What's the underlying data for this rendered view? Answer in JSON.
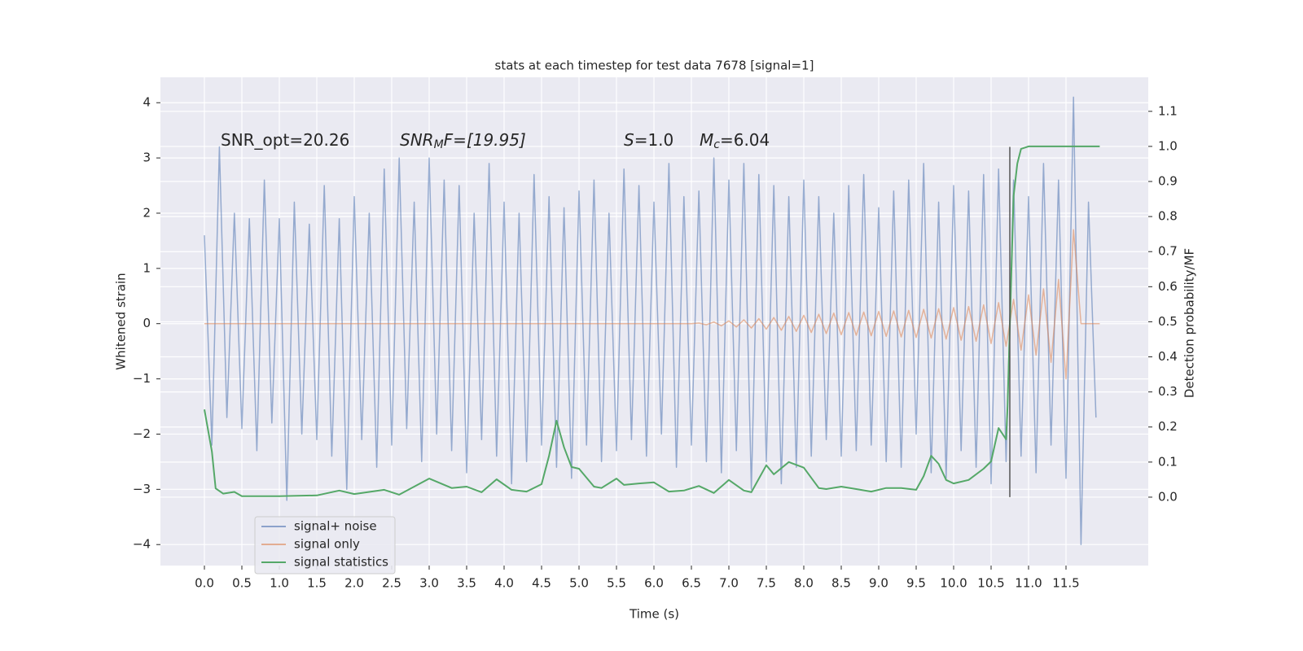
{
  "chart_data": {
    "type": "line",
    "title": "stats at each timestep for test data 7678 [signal=1]",
    "xlabel": "Time (s)",
    "ylabel": "Whitened strain",
    "y2label": "Detection probability/MF",
    "xlim": [
      -0.587,
      12.598
    ],
    "ylim": [
      -4.38,
      4.46
    ],
    "y2lim": [
      -0.195,
      1.197
    ],
    "xticks": [
      {
        "value": 0,
        "label": "0.0"
      },
      0.5,
      {
        "value": 1,
        "label": "1.0"
      },
      1.5,
      {
        "value": 2,
        "label": "2.0"
      },
      2.5,
      {
        "value": 3,
        "label": "3.0"
      },
      3.5,
      {
        "value": 4,
        "label": "4.0"
      },
      4.5,
      {
        "value": 5,
        "label": "5.0"
      },
      5.5,
      {
        "value": 6,
        "label": "6.0"
      },
      6.5,
      {
        "value": 7,
        "label": "7.0"
      },
      7.5,
      {
        "value": 8,
        "label": "8.0"
      },
      8.5,
      {
        "value": 9,
        "label": "9.0"
      },
      9.5,
      {
        "value": 10,
        "label": "10.0"
      },
      10.5,
      {
        "value": 11,
        "label": "11.0"
      },
      11.5
    ],
    "yticks": [
      {
        "value": -4,
        "label": "−4"
      },
      {
        "value": -3,
        "label": "−3"
      },
      {
        "value": -2,
        "label": "−2"
      },
      {
        "value": -1,
        "label": "−1"
      },
      0,
      1,
      2,
      3,
      4
    ],
    "y2ticks": [
      {
        "value": 0,
        "label": "0.0"
      },
      0.1,
      0.2,
      0.3,
      0.4,
      0.5,
      0.6,
      0.7,
      0.8,
      0.9,
      {
        "value": 1,
        "label": "1.0"
      },
      1.1
    ],
    "grid": true,
    "legend": "lower left",
    "annotations": [
      {
        "after": "SNR_opt=20.26"
      },
      {
        "italic": "SNR",
        "sub": "M",
        "after": "F=[19.95]"
      },
      {
        "italic": "S",
        "after": "=1.0"
      },
      {
        "italic": "M",
        "sub": "c",
        "after": "=6.04"
      }
    ],
    "vline": {
      "x": 10.75,
      "ymin": -3.14,
      "ymax": 3.2,
      "color": "#555555"
    },
    "series": [
      {
        "name": "signal+ noise",
        "color": "#4c72b0",
        "x": [
          0,
          0.1,
          0.2,
          0.3,
          0.4,
          0.5,
          0.6,
          0.7,
          0.8,
          0.9,
          1,
          1.1,
          1.2,
          1.3,
          1.4,
          1.5,
          1.6,
          1.7,
          1.8,
          1.9,
          2,
          2.1,
          2.2,
          2.3,
          2.4,
          2.5,
          2.6,
          2.7,
          2.8,
          2.9,
          3,
          3.1,
          3.2,
          3.3,
          3.4,
          3.5,
          3.6,
          3.7,
          3.8,
          3.9,
          4,
          4.1,
          4.2,
          4.3,
          4.4,
          4.5,
          4.6,
          4.7,
          4.8,
          4.9,
          5,
          5.1,
          5.2,
          5.3,
          5.4,
          5.5,
          5.6,
          5.7,
          5.8,
          5.9,
          6,
          6.1,
          6.2,
          6.3,
          6.4,
          6.5,
          6.6,
          6.7,
          6.8,
          6.9,
          7,
          7.1,
          7.2,
          7.3,
          7.4,
          7.5,
          7.6,
          7.7,
          7.8,
          7.9,
          8,
          8.1,
          8.2,
          8.3,
          8.4,
          8.5,
          8.6,
          8.7,
          8.8,
          8.9,
          9,
          9.1,
          9.2,
          9.3,
          9.4,
          9.5,
          9.6,
          9.7,
          9.8,
          9.9,
          10,
          10.1,
          10.2,
          10.3,
          10.4,
          10.5,
          10.6,
          10.7,
          10.8,
          10.9,
          11,
          11.1,
          11.2,
          11.3,
          11.4,
          11.5,
          11.6,
          11.7,
          11.8,
          11.9
        ],
        "values": [
          1.6,
          -2.2,
          3.2,
          -1.7,
          2.0,
          -1.9,
          1.9,
          -2.3,
          2.6,
          -1.8,
          1.9,
          -3.2,
          2.2,
          -2.0,
          1.8,
          -2.1,
          2.5,
          -2.4,
          1.9,
          -3.0,
          2.3,
          -2.1,
          2.0,
          -2.6,
          2.8,
          -2.2,
          3.0,
          -1.9,
          2.2,
          -2.5,
          3.0,
          -2.0,
          2.6,
          -2.3,
          2.5,
          -2.7,
          2.0,
          -2.1,
          2.9,
          -2.4,
          2.2,
          -2.9,
          2.0,
          -2.5,
          2.7,
          -2.2,
          2.3,
          -2.6,
          2.1,
          -2.8,
          2.4,
          -2.2,
          2.6,
          -2.5,
          2.0,
          -2.3,
          2.8,
          -2.1,
          2.5,
          -2.4,
          2.2,
          -2.0,
          2.9,
          -2.6,
          2.3,
          -2.2,
          2.4,
          -2.5,
          3.0,
          -2.7,
          2.6,
          -2.3,
          2.9,
          -3.0,
          2.7,
          -2.5,
          2.5,
          -2.9,
          2.3,
          -2.6,
          2.6,
          -2.4,
          2.3,
          -2.1,
          2.0,
          -2.4,
          2.5,
          -2.3,
          2.7,
          -2.2,
          2.1,
          -2.5,
          2.4,
          -2.6,
          2.6,
          -2.0,
          2.9,
          -2.7,
          2.2,
          -2.8,
          2.5,
          -2.3,
          2.4,
          -2.6,
          2.7,
          -2.9,
          2.8,
          -2.5,
          2.6,
          -2.4,
          2.3,
          -2.7,
          2.9,
          -2.2,
          2.6,
          -2.8,
          4.1,
          -4.0,
          2.2,
          -1.7
        ]
      },
      {
        "name": "signal only",
        "color": "#dd8452",
        "x": [
          0,
          6.5,
          6.6,
          6.7,
          6.8,
          6.9,
          7,
          7.1,
          7.2,
          7.3,
          7.4,
          7.5,
          7.6,
          7.7,
          7.8,
          7.9,
          8,
          8.1,
          8.2,
          8.3,
          8.4,
          8.5,
          8.6,
          8.7,
          8.8,
          8.9,
          9,
          9.1,
          9.2,
          9.3,
          9.4,
          9.5,
          9.6,
          9.7,
          9.8,
          9.9,
          10,
          10.1,
          10.2,
          10.3,
          10.4,
          10.5,
          10.6,
          10.7,
          10.8,
          10.9,
          11,
          11.1,
          11.2,
          11.3,
          11.4,
          11.5,
          11.6,
          11.7,
          11.8,
          11.9,
          11.95
        ],
        "values": [
          0,
          0,
          0.01,
          -0.02,
          0.03,
          -0.04,
          0.05,
          -0.06,
          0.07,
          -0.08,
          0.09,
          -0.1,
          0.11,
          -0.12,
          0.13,
          -0.14,
          0.15,
          -0.16,
          0.17,
          -0.18,
          0.19,
          -0.2,
          0.2,
          -0.21,
          0.21,
          -0.22,
          0.22,
          -0.23,
          0.23,
          -0.24,
          0.24,
          -0.25,
          0.26,
          -0.26,
          0.27,
          -0.28,
          0.29,
          -0.3,
          0.31,
          -0.32,
          0.34,
          -0.36,
          0.38,
          -0.41,
          0.44,
          -0.48,
          0.52,
          -0.57,
          0.63,
          -0.7,
          0.8,
          -1.0,
          1.7,
          0,
          0,
          0,
          0
        ]
      },
      {
        "name": "signal statistics",
        "color": "#55a868",
        "axis": "y2",
        "x": [
          0,
          0.1,
          0.15,
          0.25,
          0.4,
          0.5,
          1,
          1.5,
          1.8,
          2,
          2.4,
          2.6,
          2.8,
          3,
          3.3,
          3.5,
          3.7,
          3.9,
          4.1,
          4.3,
          4.5,
          4.6,
          4.7,
          4.8,
          4.9,
          5,
          5.2,
          5.3,
          5.5,
          5.6,
          5.8,
          6,
          6.2,
          6.4,
          6.6,
          6.8,
          7,
          7.2,
          7.3,
          7.5,
          7.6,
          7.8,
          8,
          8.2,
          8.3,
          8.5,
          8.7,
          8.9,
          9.1,
          9.3,
          9.5,
          9.6,
          9.7,
          9.8,
          9.9,
          10,
          10.2,
          10.4,
          10.5,
          10.6,
          10.7,
          10.72,
          10.8,
          10.85,
          10.9,
          11,
          11.5,
          11.95
        ],
        "values": [
          0.25,
          0.13,
          0.025,
          0.01,
          0.015,
          0.003,
          0.003,
          0.005,
          0.019,
          0.009,
          0.021,
          0.007,
          0.03,
          0.053,
          0.026,
          0.03,
          0.014,
          0.051,
          0.021,
          0.016,
          0.037,
          0.118,
          0.218,
          0.142,
          0.086,
          0.081,
          0.03,
          0.026,
          0.053,
          0.035,
          0.039,
          0.042,
          0.016,
          0.019,
          0.032,
          0.012,
          0.049,
          0.019,
          0.014,
          0.091,
          0.065,
          0.1,
          0.084,
          0.026,
          0.023,
          0.03,
          0.023,
          0.016,
          0.026,
          0.026,
          0.021,
          0.06,
          0.118,
          0.095,
          0.049,
          0.039,
          0.049,
          0.081,
          0.102,
          0.197,
          0.165,
          0.258,
          0.858,
          0.951,
          0.993,
          1.0,
          1.0,
          1.0
        ]
      }
    ]
  }
}
